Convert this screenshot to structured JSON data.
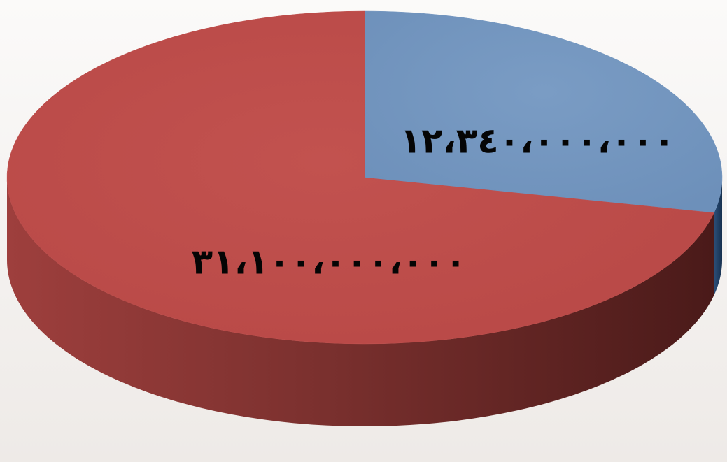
{
  "chart_data": {
    "type": "pie",
    "title": "",
    "slices": [
      {
        "label_text": "١٢،٣٤٠،٠٠٠،٠٠٠",
        "value": 12340000000,
        "color": "#7396c0",
        "side_color": "#1c3552"
      },
      {
        "label_text": "٣١،١٠٠،٠٠٠،٠٠٠",
        "value": 31100000000,
        "color": "#bf4e4c",
        "side_color": "#5d2220"
      }
    ],
    "style": "3d-pie",
    "legend": "none"
  }
}
